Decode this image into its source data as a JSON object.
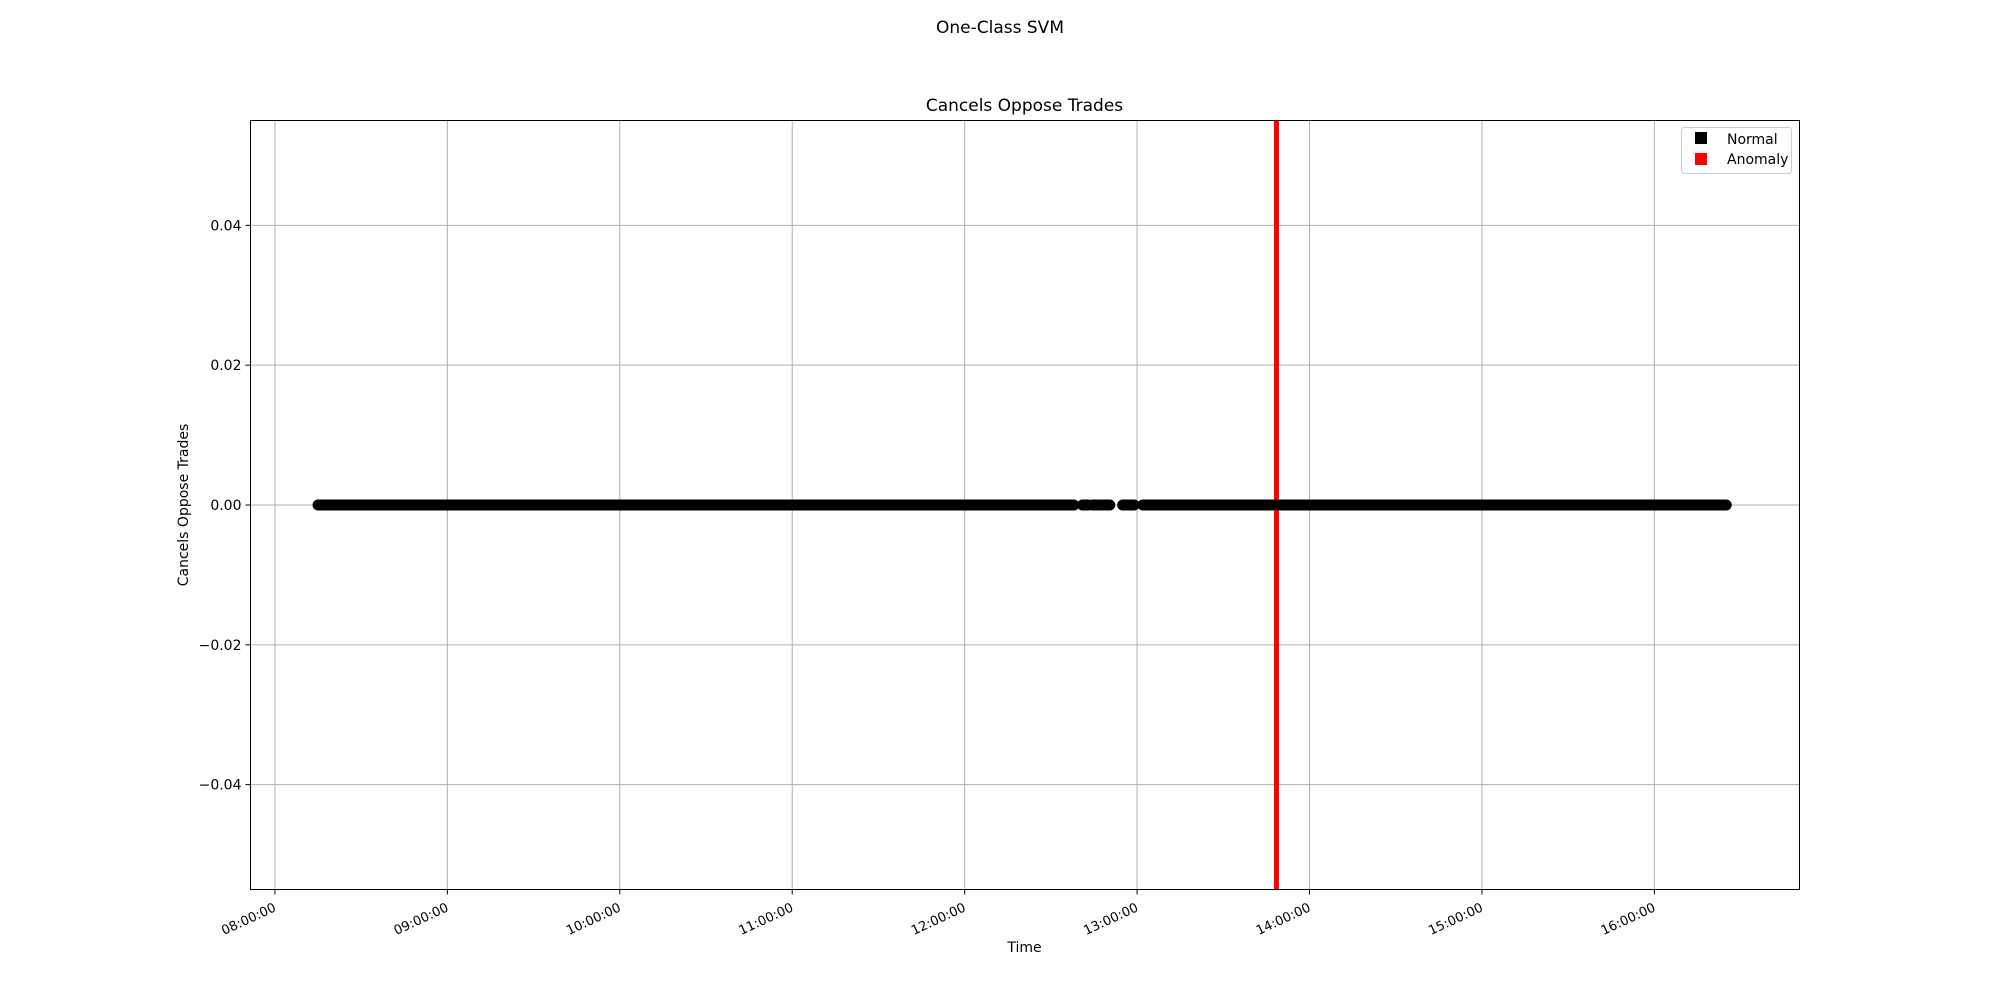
{
  "figure": {
    "suptitle": "One-Class SVM"
  },
  "chart_data": {
    "type": "scatter",
    "title": "Cancels Oppose Trades",
    "xlabel": "Time",
    "ylabel": "Cancels Oppose Trades",
    "xlim": [
      "07:51:30",
      "16:50:30"
    ],
    "ylim": [
      -0.055,
      0.055
    ],
    "x_ticks": [
      "08:00:00",
      "09:00:00",
      "10:00:00",
      "11:00:00",
      "12:00:00",
      "13:00:00",
      "14:00:00",
      "15:00:00",
      "16:00:00"
    ],
    "y_ticks": [
      {
        "value": -0.04,
        "label": "−0.04"
      },
      {
        "value": -0.02,
        "label": "−0.02"
      },
      {
        "value": 0.0,
        "label": "0.00"
      },
      {
        "value": 0.02,
        "label": "0.02"
      },
      {
        "value": 0.04,
        "label": "0.04"
      }
    ],
    "grid": true,
    "legend": {
      "placement": "top-right",
      "entries": [
        {
          "name": "Normal",
          "color": "#000000"
        },
        {
          "name": "Anomaly",
          "color": "#ff0000"
        }
      ]
    },
    "series": [
      {
        "name": "Normal",
        "color": "#000000",
        "y_value": 0.0,
        "time_ranges": [
          [
            "08:15:00",
            "09:45:00"
          ],
          [
            "09:45:00",
            "12:38:00"
          ],
          [
            "12:41:00",
            "12:43:00"
          ],
          [
            "12:44:30",
            "12:46:00"
          ],
          [
            "12:47:00",
            "12:48:00"
          ],
          [
            "12:49:00",
            "12:50:30"
          ],
          [
            "12:55:00",
            "12:59:00"
          ],
          [
            "13:02:00",
            "16:25:00"
          ]
        ]
      },
      {
        "name": "Anomaly",
        "color": "#ff0000",
        "time": "13:48:30",
        "y_range": [
          -0.055,
          0.055
        ]
      }
    ]
  }
}
